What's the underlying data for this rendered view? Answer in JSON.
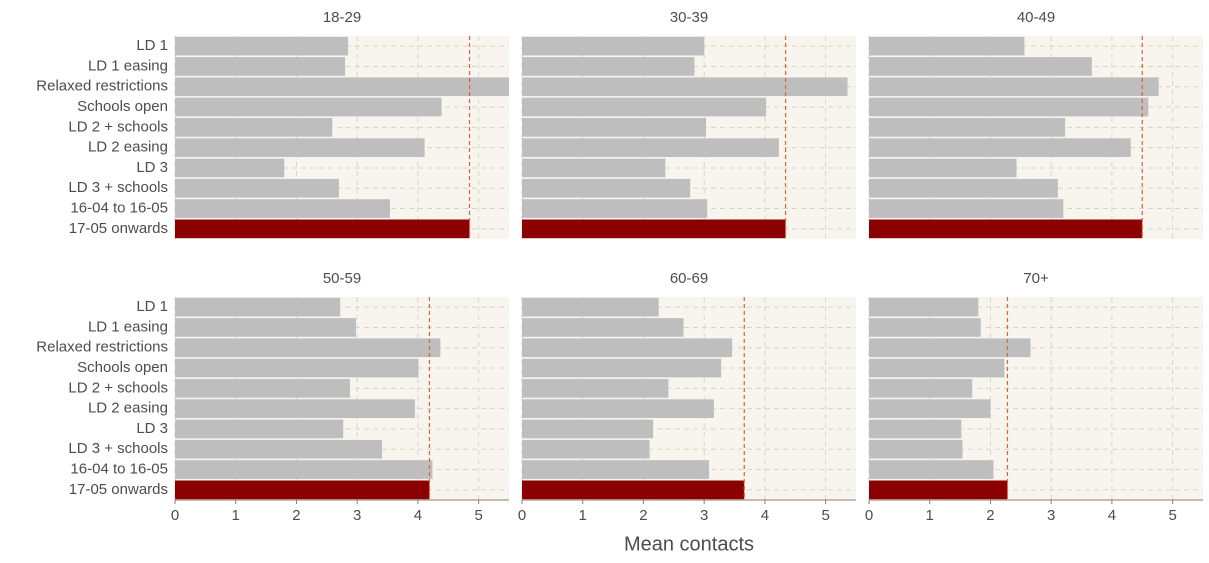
{
  "chart_data": [
    {
      "type": "bar",
      "title": "18-29",
      "categories": [
        "LD 1",
        "LD 1 easing",
        "Relaxed restrictions",
        "Schools open",
        "LD 2 + schools",
        "LD 2 easing",
        "LD 3",
        "LD 3 + schools",
        "16-04 to 16-05",
        "17-05 onwards"
      ],
      "values": [
        2.85,
        2.8,
        5.5,
        4.39,
        2.59,
        4.11,
        1.8,
        2.7,
        3.54,
        4.85
      ],
      "color": "#bebebe",
      "highlight_color": "#8b0000",
      "reference_color": "#e0603a",
      "xlim": [
        0,
        5.5
      ],
      "xticks": [
        0,
        1,
        2,
        3,
        4,
        5
      ],
      "grid": true
    },
    {
      "type": "bar",
      "title": "30-39",
      "values": [
        3.0,
        2.84,
        5.36,
        4.02,
        3.03,
        4.23,
        2.36,
        2.77,
        3.05,
        4.34
      ],
      "color": "#bebebe",
      "highlight_color": "#8b0000",
      "reference_color": "#e0603a",
      "xlim": [
        0,
        5.5
      ],
      "xticks": [
        0,
        1,
        2,
        3,
        4,
        5
      ],
      "grid": true
    },
    {
      "type": "bar",
      "title": "40-49",
      "values": [
        2.56,
        3.67,
        4.77,
        4.6,
        3.23,
        4.31,
        2.43,
        3.11,
        3.2,
        4.5
      ],
      "color": "#bebebe",
      "highlight_color": "#8b0000",
      "reference_color": "#e0603a",
      "xlim": [
        0,
        5.5
      ],
      "xticks": [
        0,
        1,
        2,
        3,
        4,
        5
      ],
      "grid": true
    },
    {
      "type": "bar",
      "title": "50-59",
      "categories": [
        "LD 1",
        "LD 1 easing",
        "Relaxed restrictions",
        "Schools open",
        "LD 2 + schools",
        "LD 2 easing",
        "LD 3",
        "LD 3 + schools",
        "16-04 to 16-05",
        "17-05 onwards"
      ],
      "values": [
        2.72,
        2.98,
        4.37,
        4.01,
        2.88,
        3.95,
        2.77,
        3.41,
        4.24,
        4.19
      ],
      "color": "#bebebe",
      "highlight_color": "#8b0000",
      "reference_color": "#e0603a",
      "xlim": [
        0,
        5.5
      ],
      "xticks": [
        0,
        1,
        2,
        3,
        4,
        5
      ],
      "grid": true
    },
    {
      "type": "bar",
      "title": "60-69",
      "xlabel": "Mean contacts",
      "values": [
        2.25,
        2.66,
        3.46,
        3.28,
        2.41,
        3.16,
        2.16,
        2.1,
        3.08,
        3.66
      ],
      "color": "#bebebe",
      "highlight_color": "#8b0000",
      "reference_color": "#e0603a",
      "xlim": [
        0,
        5.5
      ],
      "xticks": [
        0,
        1,
        2,
        3,
        4,
        5
      ],
      "grid": true
    },
    {
      "type": "bar",
      "title": "70+",
      "values": [
        1.8,
        1.84,
        2.66,
        2.23,
        1.7,
        2.0,
        1.52,
        1.54,
        2.05,
        2.28
      ],
      "color": "#bebebe",
      "highlight_color": "#8b0000",
      "reference_color": "#e0603a",
      "xlim": [
        0,
        5.5
      ],
      "xticks": [
        0,
        1,
        2,
        3,
        4,
        5
      ],
      "grid": true
    }
  ]
}
